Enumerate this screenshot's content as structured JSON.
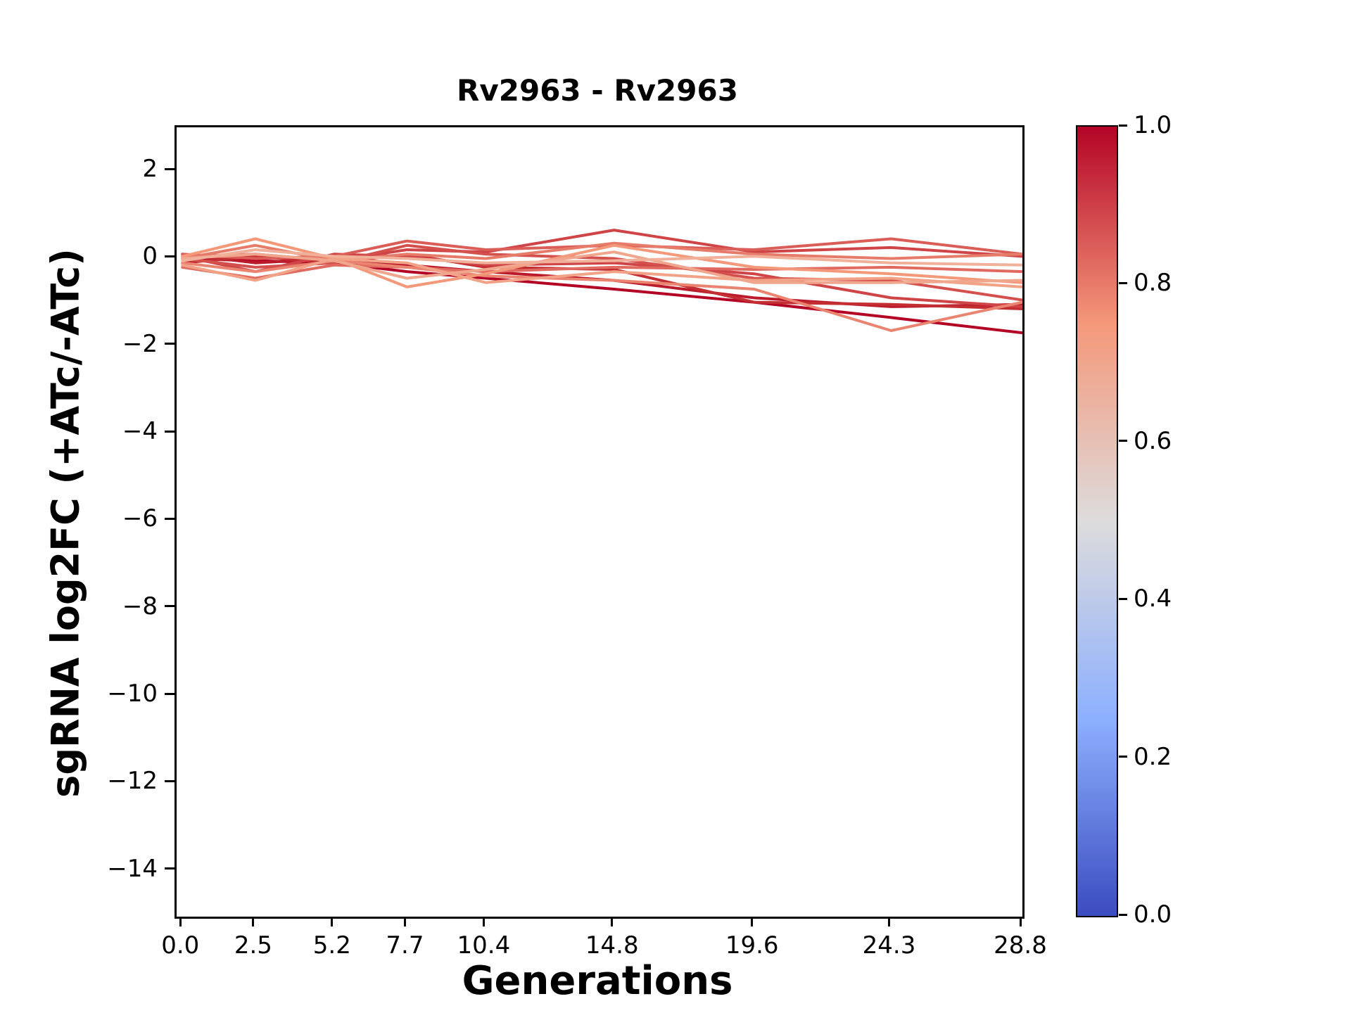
{
  "chart_data": {
    "type": "line",
    "title": "Rv2963 - Rv2963",
    "xlabel": "Generations",
    "ylabel": "sgRNA log2FC (+ATc/-ATc)",
    "grid": false,
    "legend": "none",
    "x": [
      0.0,
      2.5,
      5.2,
      7.7,
      10.4,
      14.8,
      19.6,
      24.3,
      28.8
    ],
    "xlim": [
      -0.2,
      28.8
    ],
    "ylim": [
      -15.05,
      3.0
    ],
    "xtick_values": [
      0.0,
      2.5,
      5.2,
      7.7,
      10.4,
      14.8,
      19.6,
      24.3,
      28.8
    ],
    "xtick_labels": [
      "0.0",
      "2.5",
      "5.2",
      "7.7",
      "10.4",
      "14.8",
      "19.6",
      "24.3",
      "28.8"
    ],
    "ytick_values": [
      2,
      0,
      -2,
      -4,
      -6,
      -8,
      -10,
      -12,
      -14
    ],
    "ytick_labels": [
      "2",
      "0",
      "−2",
      "−4",
      "−6",
      "−8",
      "−10",
      "−12",
      "−14"
    ],
    "series": [
      {
        "color_value": 1.0,
        "color": "#b40426",
        "y": [
          0.0,
          -0.05,
          -0.1,
          -0.3,
          -0.45,
          -0.7,
          -1.0,
          -1.35,
          -1.7
        ]
      },
      {
        "color_value": 0.97,
        "color": "#bb1a2b",
        "y": [
          0.1,
          -0.1,
          0.0,
          -0.15,
          -0.3,
          -0.5,
          -0.9,
          -1.1,
          -1.05
        ]
      },
      {
        "color_value": 0.95,
        "color": "#c32e33",
        "y": [
          -0.1,
          0.05,
          -0.1,
          0.1,
          -0.2,
          -0.25,
          -1.0,
          -1.05,
          -1.15
        ]
      },
      {
        "color_value": 0.9,
        "color": "#cf4446",
        "y": [
          0.05,
          0.1,
          -0.05,
          0.2,
          0.15,
          0.65,
          0.15,
          0.25,
          0.05
        ]
      },
      {
        "color_value": 0.9,
        "color": "#cf4446",
        "y": [
          0.05,
          -0.3,
          0.1,
          0.05,
          -0.15,
          -0.1,
          -0.35,
          -0.9,
          -1.1
        ]
      },
      {
        "color_value": 0.88,
        "color": "#d4504d",
        "y": [
          0.0,
          -0.2,
          -0.1,
          0.3,
          0.1,
          0.0,
          -0.45,
          -0.5,
          -0.95
        ]
      },
      {
        "color_value": 0.85,
        "color": "#da5d58",
        "y": [
          0.1,
          0.0,
          0.05,
          0.4,
          0.2,
          0.3,
          0.2,
          0.45,
          0.1
        ]
      },
      {
        "color_value": 0.82,
        "color": "#e06a60",
        "y": [
          -0.2,
          -0.45,
          -0.15,
          -0.2,
          -0.3,
          -0.2,
          -0.25,
          -0.2,
          -0.3
        ]
      },
      {
        "color_value": 0.8,
        "color": "#e77b69",
        "y": [
          0.0,
          0.3,
          -0.05,
          0.1,
          0.0,
          0.35,
          0.1,
          0.0,
          0.1
        ]
      },
      {
        "color_value": 0.78,
        "color": "#ea8470",
        "y": [
          -0.1,
          -0.3,
          -0.05,
          -0.2,
          -0.4,
          -0.5,
          -0.7,
          -1.65,
          -1.0
        ]
      },
      {
        "color_value": 0.75,
        "color": "#f4987a",
        "y": [
          0.05,
          0.45,
          0.0,
          -0.65,
          -0.35,
          0.3,
          -0.2,
          -0.35,
          -0.55
        ]
      },
      {
        "color_value": 0.72,
        "color": "#f2a287",
        "y": [
          -0.15,
          -0.5,
          0.0,
          -0.1,
          -0.55,
          -0.3,
          -0.5,
          -0.45,
          -0.65
        ]
      },
      {
        "color_value": 0.7,
        "color": "#efa68d",
        "y": [
          0.0,
          0.1,
          -0.05,
          -0.45,
          -0.25,
          0.15,
          -0.55,
          -0.55,
          -0.5
        ]
      },
      {
        "color_value": 0.65,
        "color": "#f1b09a",
        "y": [
          -0.05,
          0.2,
          0.05,
          0.0,
          -0.1,
          -0.05,
          0.05,
          -0.1,
          -0.15
        ]
      }
    ],
    "colorbar": {
      "min": 0.0,
      "max": 1.0,
      "tick_values": [
        1.0,
        0.8,
        0.6,
        0.4,
        0.2,
        0.0
      ],
      "tick_labels": [
        "1.0",
        "0.8",
        "0.6",
        "0.4",
        "0.2",
        "0.0"
      ],
      "colormap": "coolwarm",
      "gradient_stops": [
        "#3b4cc0",
        "#8db0fe",
        "#dddcdc",
        "#f4987a",
        "#b40426"
      ]
    }
  }
}
